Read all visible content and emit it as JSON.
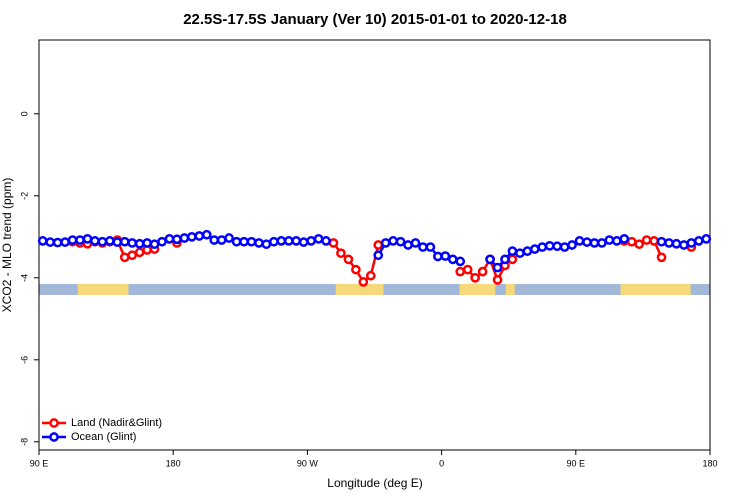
{
  "chart_data": {
    "type": "line",
    "title": "22.5S-17.5S January (Ver 10)   2015-01-01 to 2020-12-18",
    "x_label": "Longitude (deg E)",
    "y_label": "XCO2 - MLO trend (ppm)",
    "x": [
      92.5,
      97.5,
      102.5,
      107.5,
      112.5,
      117.5,
      122.5,
      127.5,
      132.5,
      137.5,
      142.5,
      147.5,
      152.5,
      157.5,
      162.5,
      167.5,
      172.5,
      177.5,
      182.5,
      187.5,
      192.5,
      197.5,
      202.5,
      207.5,
      212.5,
      217.5,
      222.5,
      227.5,
      232.5,
      237.5,
      242.5,
      247.5,
      252.5,
      257.5,
      262.5,
      267.5,
      272.5,
      277.5,
      282.5,
      287.5,
      292.5,
      297.5,
      302.5,
      307.5,
      312.5,
      317.5,
      322.5,
      327.5,
      332.5,
      337.5,
      342.5,
      347.5,
      352.5,
      357.5,
      362.5,
      367.5,
      372.5,
      377.5,
      382.5,
      387.5,
      392.5,
      397.5,
      402.5,
      407.5,
      412.5,
      417.5,
      422.5,
      427.5,
      432.5,
      437.5,
      442.5,
      447.5,
      452.5,
      457.5,
      462.5,
      467.5,
      472.5,
      477.5,
      482.5,
      487.5,
      492.5,
      497.5,
      502.5,
      507.5,
      512.5,
      517.5,
      522.5,
      527.5,
      532.5,
      537.5
    ],
    "series": [
      {
        "name": "Land (Nadir&Glint)",
        "color": "#ff0000",
        "values": [
          null,
          null,
          null,
          null,
          -3.12,
          -3.15,
          -3.17,
          -3.12,
          -3.15,
          -3.12,
          -3.08,
          -3.5,
          -3.45,
          -3.38,
          -3.32,
          -3.3,
          null,
          null,
          -3.15,
          null,
          null,
          null,
          null,
          null,
          null,
          null,
          null,
          null,
          null,
          null,
          null,
          null,
          null,
          null,
          null,
          null,
          null,
          null,
          null,
          -3.15,
          -3.4,
          -3.55,
          -3.8,
          -4.1,
          -3.95,
          -3.2,
          null,
          null,
          null,
          null,
          null,
          null,
          null,
          null,
          null,
          null,
          -3.85,
          -3.8,
          -4.0,
          -3.85,
          -3.55,
          -4.05,
          -3.7,
          -3.55,
          null,
          null,
          null,
          null,
          null,
          null,
          null,
          null,
          null,
          null,
          null,
          null,
          null,
          null,
          -3.1,
          -3.12,
          -3.18,
          -3.08,
          -3.1,
          -3.5,
          null,
          null,
          null,
          -3.25,
          null,
          null
        ]
      },
      {
        "name": "Ocean (Glint)",
        "color": "#0000ff",
        "values": [
          -3.1,
          -3.13,
          -3.14,
          -3.13,
          -3.08,
          -3.08,
          -3.05,
          -3.1,
          -3.12,
          -3.1,
          -3.13,
          -3.12,
          -3.15,
          -3.17,
          -3.15,
          -3.18,
          -3.12,
          -3.05,
          -3.06,
          -3.03,
          -3.0,
          -2.98,
          -2.95,
          -3.08,
          -3.08,
          -3.03,
          -3.12,
          -3.12,
          -3.12,
          -3.15,
          -3.18,
          -3.12,
          -3.1,
          -3.1,
          -3.1,
          -3.13,
          -3.1,
          -3.05,
          -3.1,
          null,
          null,
          null,
          null,
          null,
          null,
          -3.45,
          -3.15,
          -3.1,
          -3.12,
          -3.2,
          -3.15,
          -3.25,
          -3.25,
          -3.48,
          -3.47,
          -3.55,
          -3.6,
          null,
          null,
          null,
          -3.55,
          -3.75,
          -3.55,
          -3.35,
          -3.4,
          -3.35,
          -3.3,
          -3.25,
          -3.22,
          -3.23,
          -3.25,
          -3.2,
          -3.1,
          -3.13,
          -3.15,
          -3.15,
          -3.08,
          -3.1,
          -3.05,
          null,
          null,
          null,
          null,
          -3.12,
          -3.15,
          -3.17,
          -3.2,
          -3.15,
          -3.1,
          -3.05
        ]
      }
    ],
    "xlim": [
      90,
      540
    ],
    "xticks": [
      {
        "value": 90,
        "label": "90 E"
      },
      {
        "value": 180,
        "label": "180"
      },
      {
        "value": 270,
        "label": "90 W"
      },
      {
        "value": 360,
        "label": "0"
      },
      {
        "value": 450,
        "label": "90 E"
      },
      {
        "value": 540,
        "label": "180"
      }
    ],
    "ylim": [
      -8.2,
      1.8
    ],
    "yticks": [
      0,
      -2,
      -4,
      -6,
      -8
    ],
    "legend": "bottom-left",
    "surface_strip": {
      "ylim": [
        -4.42,
        -4.15
      ],
      "ocean_color": "#a3b8d8",
      "land_color": "#f5d97a",
      "land_ranges": [
        [
          116,
          150
        ],
        [
          289,
          321
        ],
        [
          372,
          396
        ],
        [
          403,
          409
        ],
        [
          480,
          527
        ]
      ]
    }
  }
}
